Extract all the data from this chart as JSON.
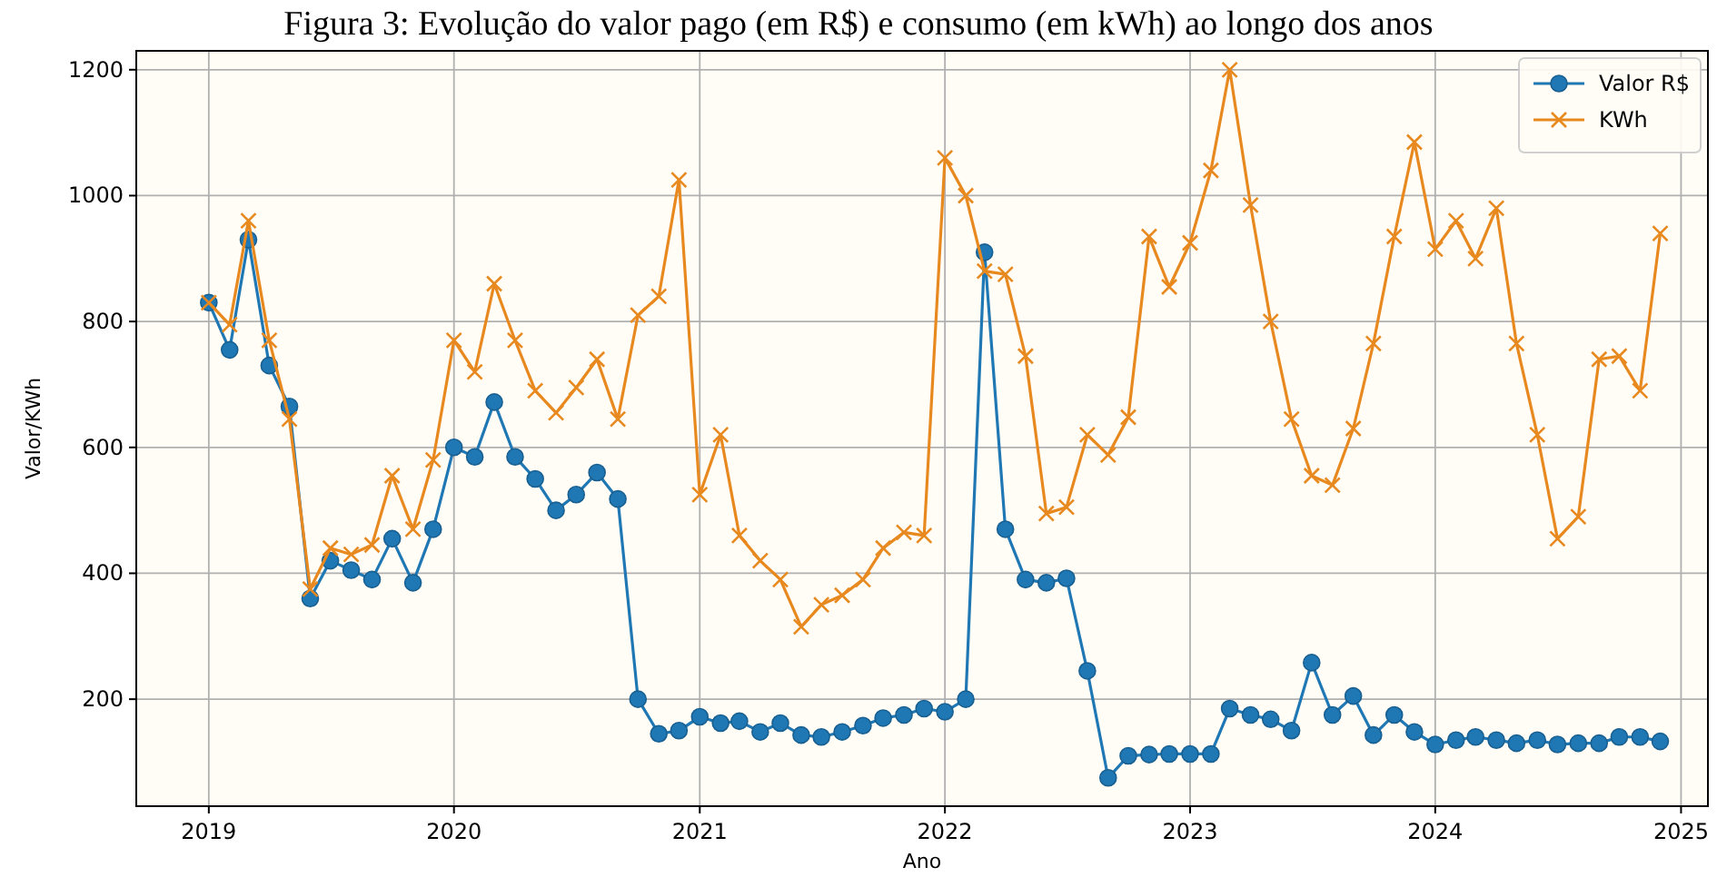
{
  "chart_data": {
    "type": "line",
    "title": "Figura 3: Evolução do valor pago (em R$) e consumo (em kWh) ao longo dos anos",
    "xlabel": "Ano",
    "ylabel": "Valor/KWh",
    "x": [
      "2019-01",
      "2019-02",
      "2019-03",
      "2019-04",
      "2019-05",
      "2019-06",
      "2019-07",
      "2019-08",
      "2019-09",
      "2019-10",
      "2019-11",
      "2019-12",
      "2020-01",
      "2020-02",
      "2020-03",
      "2020-04",
      "2020-05",
      "2020-06",
      "2020-07",
      "2020-08",
      "2020-09",
      "2020-10",
      "2020-11",
      "2020-12",
      "2021-01",
      "2021-02",
      "2021-03",
      "2021-04",
      "2021-05",
      "2021-06",
      "2021-07",
      "2021-08",
      "2021-09",
      "2021-10",
      "2021-11",
      "2021-12",
      "2022-01",
      "2022-02",
      "2022-03",
      "2022-04",
      "2022-05",
      "2022-06",
      "2022-07",
      "2022-08",
      "2022-09",
      "2022-10",
      "2022-11",
      "2022-12",
      "2023-01",
      "2023-02",
      "2023-03",
      "2023-04",
      "2023-05",
      "2023-06",
      "2023-07",
      "2023-08",
      "2023-09",
      "2023-10",
      "2023-11",
      "2023-12",
      "2024-01",
      "2024-02",
      "2024-03",
      "2024-04",
      "2024-05",
      "2024-06",
      "2024-07",
      "2024-08",
      "2024-09",
      "2024-10",
      "2024-11",
      "2024-12"
    ],
    "series": [
      {
        "name": "Valor R$",
        "color": "#1f77b4",
        "marker": "circle",
        "values": [
          830,
          755,
          930,
          730,
          665,
          360,
          420,
          405,
          390,
          455,
          385,
          470,
          600,
          585,
          672,
          585,
          550,
          500,
          525,
          560,
          518,
          200,
          145,
          150,
          172,
          162,
          165,
          148,
          162,
          143,
          140,
          148,
          158,
          170,
          175,
          185,
          180,
          200,
          910,
          470,
          390,
          385,
          392,
          245,
          75,
          110,
          112,
          113,
          113,
          113,
          185,
          175,
          168,
          150,
          258,
          175,
          205,
          143,
          175,
          148,
          128,
          135,
          140,
          135,
          130,
          135,
          128,
          130,
          130,
          140,
          140,
          133
        ]
      },
      {
        "name": "KWh",
        "color": "#e8891f",
        "marker": "cross",
        "values": [
          830,
          795,
          960,
          770,
          645,
          375,
          440,
          430,
          445,
          555,
          470,
          580,
          770,
          720,
          860,
          770,
          690,
          655,
          695,
          740,
          645,
          810,
          840,
          1025,
          525,
          620,
          460,
          420,
          390,
          315,
          350,
          365,
          390,
          440,
          465,
          460,
          1060,
          1000,
          880,
          875,
          745,
          495,
          505,
          620,
          588,
          648,
          935,
          855,
          925,
          1040,
          1200,
          985,
          800,
          645,
          555,
          540,
          630,
          765,
          935,
          1085,
          915,
          960,
          900,
          980,
          765,
          620,
          455,
          490,
          740,
          745,
          690,
          940
        ]
      }
    ],
    "xlim": [
      "2018-09-15",
      "2025-02-10"
    ],
    "xticks": [
      "2019",
      "2020",
      "2021",
      "2022",
      "2023",
      "2024",
      "2025"
    ],
    "ylim": [
      30,
      1230
    ],
    "yticks": [
      200,
      400,
      600,
      800,
      1000,
      1200
    ],
    "grid": true,
    "legend": "top right",
    "line_style": "solid"
  }
}
